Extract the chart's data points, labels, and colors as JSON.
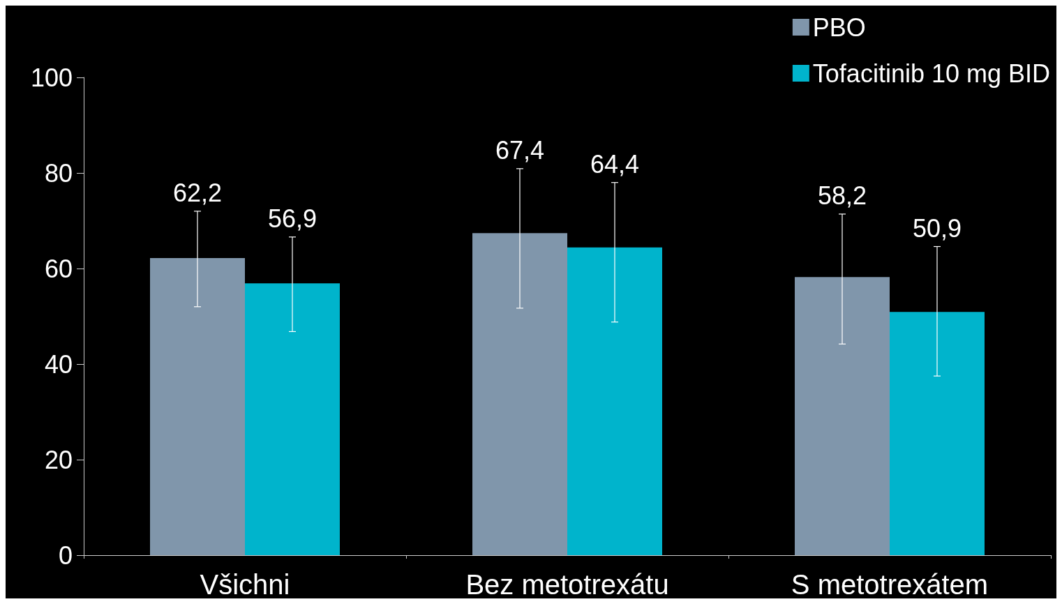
{
  "chart_data": {
    "type": "bar",
    "categories": [
      "Všichni",
      "Bez metotrexátu",
      "S metotrexátem"
    ],
    "series": [
      {
        "name": "PBO",
        "color": "#8096ab",
        "values": [
          62.2,
          67.4,
          58.2
        ],
        "value_labels": [
          "62,2",
          "67,4",
          "58,2"
        ],
        "errors": [
          [
            52.0,
            72.0
          ],
          [
            51.7,
            80.9
          ],
          [
            44.2,
            71.4
          ]
        ]
      },
      {
        "name": "Tofacitinib 10 mg BID",
        "color": "#00b4cc",
        "values": [
          56.9,
          64.4,
          50.9
        ],
        "value_labels": [
          "56,9",
          "64,4",
          "50,9"
        ],
        "errors": [
          [
            46.8,
            66.6
          ],
          [
            48.8,
            78.0
          ],
          [
            37.5,
            64.6
          ]
        ]
      }
    ],
    "ylim": [
      0,
      100
    ],
    "yticks": [
      0,
      20,
      40,
      60,
      80,
      100
    ],
    "grid": false,
    "legend": "top right"
  }
}
